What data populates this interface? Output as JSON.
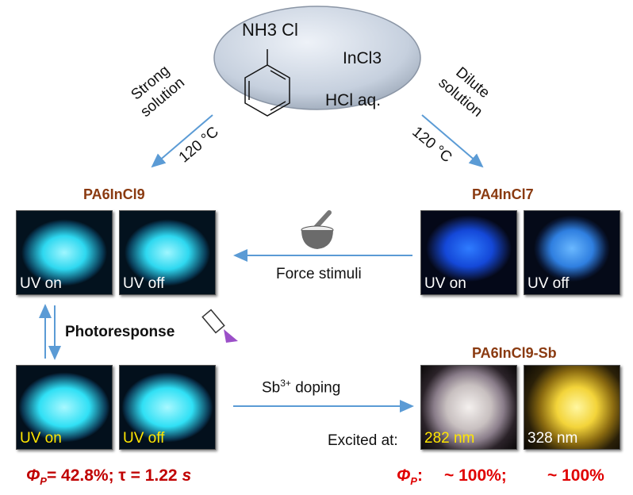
{
  "reactants": {
    "cation": "NH3",
    "anion": "Cl",
    "salt": "InCl3",
    "acid": "HCl aq."
  },
  "left_route": {
    "line1": "Strong",
    "line2": "solution",
    "temp": "120 °C"
  },
  "right_route": {
    "line1": "Dilute",
    "line2": "solution",
    "temp": "120 °C"
  },
  "pa6": {
    "title": "PA6InCl9",
    "uv_on": "UV on",
    "uv_off": "UV off"
  },
  "pa4": {
    "title": "PA4InCl7",
    "uv_on": "UV on",
    "uv_off": "UV off"
  },
  "force": {
    "label": "Force stimuli",
    "icon": "mortar-pestle-icon"
  },
  "photoresponse": {
    "label": "Photoresponse",
    "icon": "flashlight-icon",
    "uv_on": "UV on",
    "uv_off": "UV off"
  },
  "doping": {
    "label": "Sb",
    "sup": "3+",
    "rest": " doping"
  },
  "sb": {
    "title": "PA6InCl9-Sb",
    "excited_label": "Excited at:",
    "wl1": "282 nm",
    "wl2": "328 nm"
  },
  "left_result": {
    "phi": "Φ",
    "sub": "P",
    "text": "= 42.8%; τ = 1.22 ",
    "unit": "s"
  },
  "right_result": {
    "phi": "Φ",
    "sub": "P",
    "colon": ":",
    "v1": "~ 100%;",
    "v2": "~ 100%"
  },
  "colors": {
    "arrow": "#5b9bd5",
    "title": "#8a3a10",
    "result": "#e00000",
    "cyan_glow": "#3ee8ff",
    "blue_glow": "#1e5eff"
  }
}
